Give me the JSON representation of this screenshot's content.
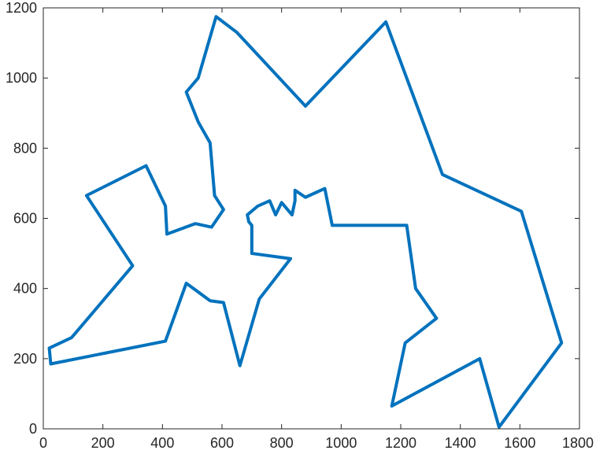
{
  "chart_data": {
    "type": "line",
    "title": "",
    "xlabel": "",
    "ylabel": "",
    "xlim": [
      0,
      1800
    ],
    "ylim": [
      0,
      1200
    ],
    "grid": false,
    "legend": "none",
    "line_color": "#0072BD",
    "x_ticks": [
      {
        "value": 0,
        "label": "0"
      },
      {
        "value": 200,
        "label": "200"
      },
      {
        "value": 400,
        "label": "400"
      },
      {
        "value": 600,
        "label": "600"
      },
      {
        "value": 800,
        "label": "800"
      },
      {
        "value": 1000,
        "label": "1000"
      },
      {
        "value": 1200,
        "label": "1200"
      },
      {
        "value": 1400,
        "label": "1400"
      },
      {
        "value": 1600,
        "label": "1600"
      },
      {
        "value": 1800,
        "label": "1800"
      }
    ],
    "y_ticks": [
      {
        "value": 0,
        "label": "0"
      },
      {
        "value": 200,
        "label": "200"
      },
      {
        "value": 400,
        "label": "400"
      },
      {
        "value": 600,
        "label": "600"
      },
      {
        "value": 800,
        "label": "800"
      },
      {
        "value": 1000,
        "label": "1000"
      },
      {
        "value": 1200,
        "label": "1200"
      }
    ],
    "series": [
      {
        "x": [
          20,
          95,
          300,
          145,
          345,
          410,
          415,
          510,
          565,
          605,
          575,
          560,
          520,
          480,
          520,
          580,
          650,
          880,
          1150,
          1340,
          1605,
          1740,
          1530,
          1465,
          1170,
          1215,
          1320,
          1250,
          1220,
          970,
          945,
          880,
          845,
          845,
          835,
          800,
          780,
          760,
          720,
          685,
          690,
          700,
          700,
          830,
          725,
          660,
          605,
          560,
          480,
          410,
          25,
          20
        ],
        "y": [
          230,
          260,
          465,
          665,
          750,
          635,
          555,
          585,
          575,
          625,
          665,
          815,
          875,
          960,
          1000,
          1175,
          1130,
          920,
          1160,
          725,
          620,
          245,
          5,
          200,
          65,
          245,
          315,
          400,
          580,
          580,
          685,
          660,
          680,
          650,
          610,
          645,
          610,
          650,
          635,
          610,
          590,
          580,
          500,
          485,
          370,
          180,
          360,
          365,
          415,
          250,
          185,
          230
        ]
      }
    ]
  }
}
